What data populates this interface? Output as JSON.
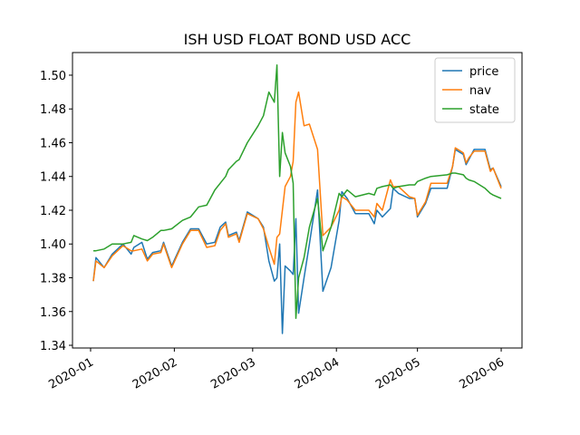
{
  "chart_data": {
    "type": "line",
    "title": "ISH USD FLOAT BOND USD ACC",
    "x": [
      1,
      2,
      5,
      8,
      12,
      15,
      16,
      19,
      21,
      23,
      26,
      27,
      30,
      34,
      37,
      40,
      43,
      46,
      48,
      50,
      51,
      54,
      55,
      58,
      62,
      64,
      66,
      68,
      69,
      70,
      71,
      72,
      74,
      75,
      76,
      77,
      79,
      81,
      84,
      86,
      89,
      92,
      93,
      95,
      98,
      103,
      105,
      106,
      108,
      111,
      112,
      114,
      118,
      120,
      121,
      124,
      126,
      132,
      134,
      135,
      138,
      139,
      140,
      142,
      146,
      148,
      149,
      152
    ],
    "series": [
      {
        "name": "price",
        "color": "#1f77b4",
        "values": [
          1.378,
          1.392,
          1.386,
          1.394,
          1.4,
          1.394,
          1.398,
          1.401,
          1.391,
          1.395,
          1.396,
          1.401,
          1.387,
          1.401,
          1.409,
          1.409,
          1.4,
          1.401,
          1.41,
          1.413,
          1.405,
          1.407,
          1.402,
          1.419,
          1.415,
          1.41,
          1.39,
          1.378,
          1.38,
          1.4,
          1.347,
          1.387,
          1.384,
          1.382,
          1.415,
          1.359,
          1.38,
          1.4,
          1.432,
          1.372,
          1.386,
          1.414,
          1.431,
          1.427,
          1.418,
          1.418,
          1.412,
          1.42,
          1.416,
          1.421,
          1.433,
          1.43,
          1.427,
          1.427,
          1.416,
          1.424,
          1.433,
          1.433,
          1.446,
          1.456,
          1.453,
          1.447,
          1.45,
          1.456,
          1.456,
          1.444,
          1.445,
          1.434
        ]
      },
      {
        "name": "nav",
        "color": "#ff7f0e",
        "values": [
          1.378,
          1.39,
          1.386,
          1.393,
          1.399,
          1.396,
          1.396,
          1.397,
          1.39,
          1.394,
          1.395,
          1.4,
          1.386,
          1.4,
          1.408,
          1.408,
          1.398,
          1.399,
          1.408,
          1.412,
          1.404,
          1.406,
          1.401,
          1.418,
          1.415,
          1.409,
          1.398,
          1.388,
          1.404,
          1.406,
          1.42,
          1.434,
          1.44,
          1.449,
          1.484,
          1.49,
          1.47,
          1.471,
          1.456,
          1.405,
          1.41,
          1.42,
          1.428,
          1.426,
          1.42,
          1.42,
          1.416,
          1.424,
          1.42,
          1.438,
          1.434,
          1.434,
          1.428,
          1.427,
          1.417,
          1.425,
          1.436,
          1.436,
          1.446,
          1.457,
          1.454,
          1.448,
          1.451,
          1.455,
          1.455,
          1.443,
          1.445,
          1.433
        ]
      },
      {
        "name": "state",
        "color": "#2ca02c",
        "values": [
          1.396,
          1.396,
          1.397,
          1.4,
          1.4,
          1.401,
          1.405,
          1.403,
          1.402,
          1.404,
          1.408,
          1.408,
          1.409,
          1.414,
          1.416,
          1.422,
          1.423,
          1.432,
          1.436,
          1.44,
          1.444,
          1.449,
          1.45,
          1.46,
          1.47,
          1.476,
          1.49,
          1.484,
          1.506,
          1.44,
          1.466,
          1.454,
          1.446,
          1.436,
          1.356,
          1.38,
          1.392,
          1.41,
          1.427,
          1.396,
          1.41,
          1.43,
          1.428,
          1.432,
          1.428,
          1.43,
          1.429,
          1.433,
          1.434,
          1.435,
          1.433,
          1.434,
          1.435,
          1.435,
          1.437,
          1.439,
          1.44,
          1.441,
          1.442,
          1.442,
          1.441,
          1.439,
          1.438,
          1.437,
          1.433,
          1.43,
          1.429,
          1.427
        ]
      }
    ],
    "xlim": [
      -6.7,
      159.7
    ],
    "xticks": [
      {
        "value": 0,
        "label": "2020-01"
      },
      {
        "value": 31,
        "label": "2020-02"
      },
      {
        "value": 60,
        "label": "2020-03"
      },
      {
        "value": 91,
        "label": "2020-04"
      },
      {
        "value": 121,
        "label": "2020-05"
      },
      {
        "value": 152,
        "label": "2020-06"
      }
    ],
    "ylim": [
      1.3384,
      1.5134
    ],
    "yticks": [
      1.34,
      1.36,
      1.38,
      {
        "value": 1.4,
        "label": "1.40"
      },
      1.42,
      1.44,
      1.46,
      1.48,
      {
        "value": 1.5,
        "label": "1.50"
      }
    ],
    "legend": "upper right",
    "grid": false
  }
}
